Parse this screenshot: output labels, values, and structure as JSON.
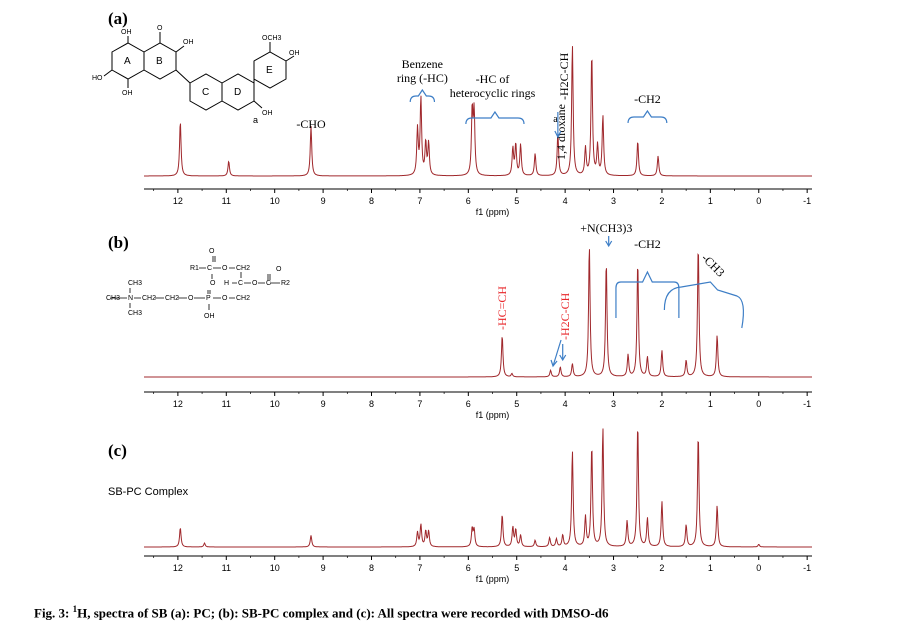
{
  "figure": {
    "caption_prefix": "Fig. 3: ",
    "caption_sup": "1",
    "caption_text": "H, spectra of SB (a): PC; (b): SB-PC complex and (c): All spectra were recorded with DMSO-d6"
  },
  "colors": {
    "spectrum": "#a0282c",
    "axis": "#000000",
    "bracket": "#3d7ec6",
    "highlight": "#e8262a"
  },
  "chart_data": [
    {
      "type": "line",
      "panel_label": "(a)",
      "xlabel": "f1 (ppm)",
      "xlim": [
        12.7,
        -1.1
      ],
      "x_reversed": true,
      "ticks": [
        12,
        11,
        10,
        9,
        8,
        7,
        6,
        5,
        4,
        3,
        2,
        1,
        0,
        -1
      ],
      "peaks": [
        {
          "x": 11.95,
          "h": 0.44
        },
        {
          "x": 10.95,
          "h": 0.12
        },
        {
          "x": 9.25,
          "h": 0.4
        },
        {
          "x": 7.05,
          "h": 0.37
        },
        {
          "x": 6.98,
          "h": 0.62
        },
        {
          "x": 6.88,
          "h": 0.26
        },
        {
          "x": 6.82,
          "h": 0.26
        },
        {
          "x": 5.92,
          "h": 0.52
        },
        {
          "x": 5.88,
          "h": 0.5
        },
        {
          "x": 5.08,
          "h": 0.22
        },
        {
          "x": 5.02,
          "h": 0.25
        },
        {
          "x": 4.92,
          "h": 0.25
        },
        {
          "x": 4.62,
          "h": 0.18
        },
        {
          "x": 4.15,
          "h": 0.34
        },
        {
          "x": 3.85,
          "h": 1.05
        },
        {
          "x": 3.58,
          "h": 0.22
        },
        {
          "x": 3.45,
          "h": 0.98
        },
        {
          "x": 3.33,
          "h": 0.24
        },
        {
          "x": 3.22,
          "h": 0.48
        },
        {
          "x": 2.5,
          "h": 0.28
        },
        {
          "x": 2.08,
          "h": 0.16
        }
      ],
      "annotations": [
        {
          "text": "-CHO",
          "x": 9.25
        },
        {
          "text": "Benzene",
          "x": 6.95
        },
        {
          "text": "ring (-HC)",
          "x": 6.95
        },
        {
          "text": "-HC of",
          "x": 5.5
        },
        {
          "text": "heterocyclic rings",
          "x": 5.5
        },
        {
          "text": "a",
          "x": 4.2
        },
        {
          "text": "-H2C-CH",
          "x": 4.0
        },
        {
          "text": "1,4 dioxane",
          "x": 3.92
        },
        {
          "text": "-CH2",
          "x": 2.3
        }
      ],
      "structure_labels": [
        "OH",
        "O",
        "OCH3",
        "OH",
        "HO",
        "OH",
        "OH",
        "OH",
        "A",
        "B",
        "C",
        "D",
        "E",
        "a"
      ]
    },
    {
      "type": "line",
      "panel_label": "(b)",
      "xlabel": "f1 (ppm)",
      "xlim": [
        12.7,
        -1.1
      ],
      "x_reversed": true,
      "ticks": [
        12,
        11,
        10,
        9,
        8,
        7,
        6,
        5,
        4,
        3,
        2,
        1,
        0,
        -1
      ],
      "peaks": [
        {
          "x": 5.3,
          "h": 0.38
        },
        {
          "x": 5.1,
          "h": 0.03
        },
        {
          "x": 4.3,
          "h": 0.06
        },
        {
          "x": 4.1,
          "h": 0.09
        },
        {
          "x": 3.85,
          "h": 0.12
        },
        {
          "x": 3.5,
          "h": 1.2
        },
        {
          "x": 3.15,
          "h": 1.05
        },
        {
          "x": 2.7,
          "h": 0.2
        },
        {
          "x": 2.5,
          "h": 1.05
        },
        {
          "x": 2.3,
          "h": 0.18
        },
        {
          "x": 2.0,
          "h": 0.24
        },
        {
          "x": 1.5,
          "h": 0.15
        },
        {
          "x": 1.25,
          "h": 1.2
        },
        {
          "x": 0.86,
          "h": 0.38
        }
      ],
      "annotations": [
        {
          "text": "-HC=CH",
          "x": 5.3
        },
        {
          "text": "-H2C-CH",
          "x": 4.0
        },
        {
          "text": "+N(CH3)3",
          "x": 3.15
        },
        {
          "text": "-CH2",
          "x": 2.3
        },
        {
          "text": "-CH3",
          "x": 1.0
        }
      ],
      "structure_labels": [
        "O",
        "R1",
        "C",
        "O",
        "CH2",
        "O",
        "O",
        "H",
        "C",
        "O",
        "C",
        "R2",
        "CH3",
        "CH3",
        "N",
        "CH2",
        "CH2",
        "O",
        "P",
        "O",
        "CH2",
        "CH3",
        "OH"
      ]
    },
    {
      "type": "line",
      "panel_label": "(c)",
      "legend": "SB-PC Complex",
      "xlabel": "f1 (ppm)",
      "xlim": [
        12.7,
        -1.1
      ],
      "x_reversed": true,
      "ticks": [
        12,
        11,
        10,
        9,
        8,
        7,
        6,
        5,
        4,
        3,
        2,
        1,
        0,
        -1
      ],
      "peaks": [
        {
          "x": 11.95,
          "h": 0.15
        },
        {
          "x": 11.45,
          "h": 0.03
        },
        {
          "x": 9.25,
          "h": 0.09
        },
        {
          "x": 7.05,
          "h": 0.11
        },
        {
          "x": 6.98,
          "h": 0.17
        },
        {
          "x": 6.88,
          "h": 0.12
        },
        {
          "x": 6.82,
          "h": 0.12
        },
        {
          "x": 5.92,
          "h": 0.14
        },
        {
          "x": 5.88,
          "h": 0.13
        },
        {
          "x": 5.3,
          "h": 0.25
        },
        {
          "x": 5.08,
          "h": 0.15
        },
        {
          "x": 5.02,
          "h": 0.13
        },
        {
          "x": 4.92,
          "h": 0.09
        },
        {
          "x": 4.62,
          "h": 0.05
        },
        {
          "x": 4.32,
          "h": 0.07
        },
        {
          "x": 4.18,
          "h": 0.06
        },
        {
          "x": 4.05,
          "h": 0.09
        },
        {
          "x": 3.85,
          "h": 0.74
        },
        {
          "x": 3.58,
          "h": 0.23
        },
        {
          "x": 3.45,
          "h": 0.78
        },
        {
          "x": 3.22,
          "h": 0.92
        },
        {
          "x": 2.72,
          "h": 0.2
        },
        {
          "x": 2.5,
          "h": 0.95
        },
        {
          "x": 2.3,
          "h": 0.22
        },
        {
          "x": 2.0,
          "h": 0.35
        },
        {
          "x": 1.5,
          "h": 0.17
        },
        {
          "x": 1.25,
          "h": 0.87
        },
        {
          "x": 0.86,
          "h": 0.32
        },
        {
          "x": 0.0,
          "h": 0.02
        }
      ]
    }
  ]
}
